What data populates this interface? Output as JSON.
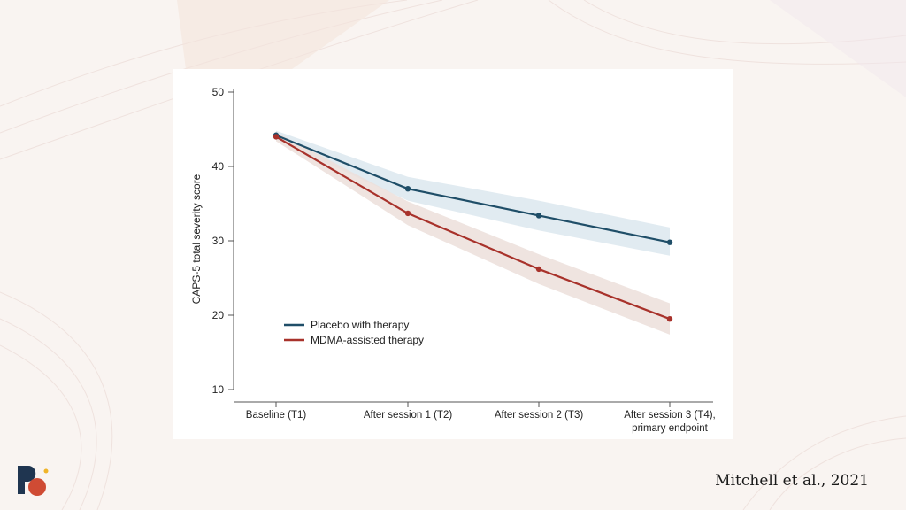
{
  "citation": "Mitchell et al., 2021",
  "colors": {
    "placebo": "#1f4e68",
    "placebo_band": "#dce8ee",
    "mdma": "#a8322b",
    "mdma_band": "#ecdfdb",
    "axis": "#555555",
    "text": "#222222"
  },
  "chart_data": {
    "type": "line",
    "title": "",
    "xlabel": "",
    "ylabel": "CAPS-5 total severity score",
    "ylim": [
      10,
      50
    ],
    "yticks": [
      10,
      20,
      30,
      40,
      50
    ],
    "categories": [
      [
        "Baseline (T1)"
      ],
      [
        "After session 1 (T2)"
      ],
      [
        "After session 2 (T3)"
      ],
      [
        "After session 3 (T4),",
        "primary endpoint"
      ]
    ],
    "legend_position": "lower-left",
    "series": [
      {
        "name": "Placebo with therapy",
        "color": "#1f4e68",
        "band_color": "#dce8ee",
        "values": [
          44.2,
          37.0,
          33.4,
          29.8
        ],
        "lower": [
          43.6,
          35.4,
          31.4,
          28.0
        ],
        "upper": [
          44.8,
          38.6,
          35.4,
          31.8
        ]
      },
      {
        "name": "MDMA-assisted therapy",
        "color": "#a8322b",
        "band_color": "#ecdfdb",
        "values": [
          44.0,
          33.7,
          26.2,
          19.5
        ],
        "lower": [
          43.4,
          32.1,
          24.2,
          17.4
        ],
        "upper": [
          44.6,
          35.3,
          28.2,
          21.6
        ]
      }
    ]
  }
}
